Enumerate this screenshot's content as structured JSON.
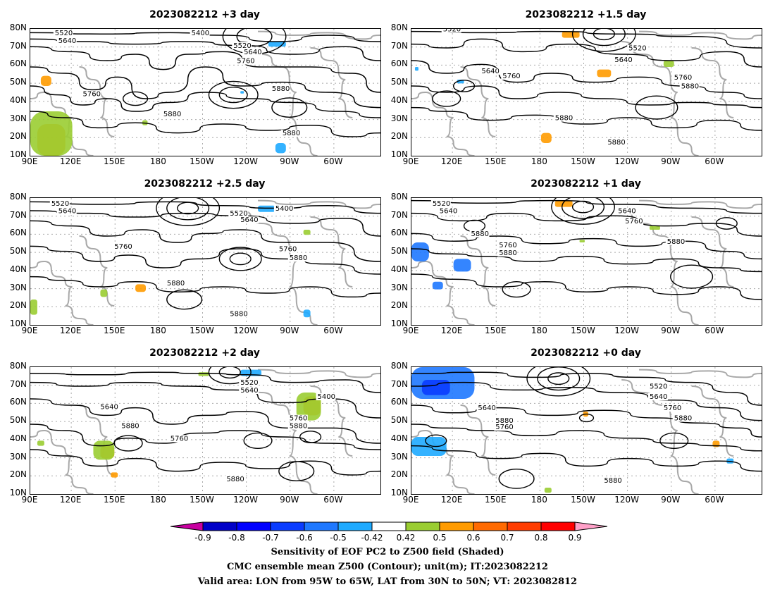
{
  "panels": [
    {
      "title": "2023082212 +3 day"
    },
    {
      "title": "2023082212 +1.5 day"
    },
    {
      "title": "2023082212 +2.5 day"
    },
    {
      "title": "2023082212 +1 day"
    },
    {
      "title": "2023082212 +2 day"
    },
    {
      "title": "2023082212 +0 day"
    }
  ],
  "lat_ticks": [
    "80N",
    "70N",
    "60N",
    "50N",
    "40N",
    "30N",
    "20N",
    "10N"
  ],
  "lon_ticks": [
    "90E",
    "120E",
    "150E",
    "180",
    "150W",
    "120W",
    "90W",
    "60W"
  ],
  "contour_labels": {
    "p0": [
      "5520",
      "5640",
      "5400",
      "5520",
      "5640",
      "5760",
      "5760",
      "5880",
      "5880",
      "5880"
    ],
    "p1": [
      "5520",
      "5640",
      "5520",
      "5640",
      "5760",
      "5760",
      "5880",
      "5880",
      "5880"
    ],
    "p2": [
      "5520",
      "5640",
      "5520",
      "5400",
      "5640",
      "5760",
      "5760",
      "5880",
      "5880",
      "5880"
    ],
    "p3": [
      "5520",
      "5640",
      "5640",
      "5760",
      "5880",
      "5760",
      "5880",
      "5880"
    ],
    "p4": [
      "5520",
      "5640",
      "5640",
      "5400",
      "5880",
      "5760",
      "5760",
      "5880",
      "5880"
    ],
    "p5": [
      "5520",
      "5640",
      "5640",
      "5760",
      "5880",
      "5760",
      "5880",
      "5880"
    ]
  },
  "colorbar": {
    "labels": [
      "-0.9",
      "-0.8",
      "-0.7",
      "-0.6",
      "-0.5",
      "-0.42",
      "0.42",
      "0.5",
      "0.6",
      "0.7",
      "0.8",
      "0.9"
    ],
    "colors": [
      "#0000c8",
      "#0000ff",
      "#0a3cff",
      "#1e78ff",
      "#1eaaff",
      "#ffffff",
      "#9acd32",
      "#ff9b00",
      "#ff6a00",
      "#ff3c00",
      "#ff0000"
    ],
    "low_extend_color": "#c800a0",
    "high_extend_color": "#ffa0c8"
  },
  "caption": {
    "line1": "Sensitivity of EOF PC2 to Z500 field (Shaded)",
    "line2": "CMC ensemble mean Z500 (Contour); unit(m); IT:2023082212",
    "line3": "Valid area: LON from 95W to 65W, LAT from 30N to 50N; VT: 2023082812"
  }
}
